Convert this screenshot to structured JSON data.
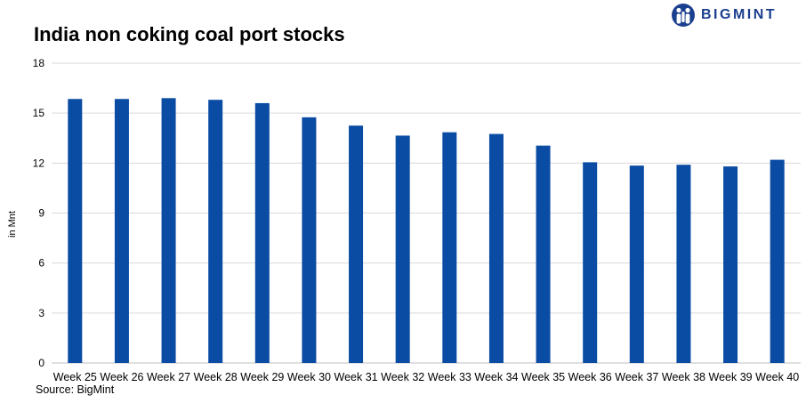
{
  "brand": {
    "name": "BIGMINT",
    "color": "#1b3f8f"
  },
  "chart_data": {
    "type": "bar",
    "title": "India non coking coal port stocks",
    "xlabel": "",
    "ylabel": "in Mnt",
    "source": "Source: BigMint",
    "categories": [
      "Week 25",
      "Week 26",
      "Week 27",
      "Week 28",
      "Week 29",
      "Week 30",
      "Week 31",
      "Week 32",
      "Week 33",
      "Week 34",
      "Week 35",
      "Week 36",
      "Week 37",
      "Week 38",
      "Week 39",
      "Week 40"
    ],
    "values": [
      15.85,
      15.85,
      15.9,
      15.8,
      15.6,
      14.75,
      14.25,
      13.65,
      13.85,
      13.75,
      13.05,
      12.05,
      11.85,
      11.9,
      11.8,
      12.2
    ],
    "ylim": [
      0,
      18
    ],
    "yticks": [
      0,
      3,
      6,
      9,
      12,
      15,
      18
    ],
    "grid": true,
    "legend": "none",
    "bar_color": "#0a4ba3",
    "grid_color": "#d9d9d9",
    "axis_color": "#bfbfbf"
  }
}
